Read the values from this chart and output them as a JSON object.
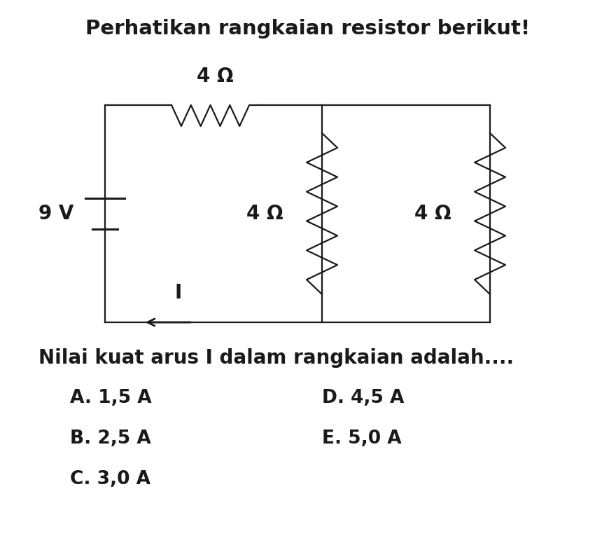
{
  "title": "Perhatikan rangkaian resistor berikut!",
  "title_fontsize": 21,
  "question": "Nilai kuat arus I dalam rangkaian adalah....",
  "question_fontsize": 20,
  "options_left": [
    "A. 1,5 A",
    "B. 2,5 A",
    "C. 3,0 A"
  ],
  "options_right": [
    "D. 4,5 A",
    "E. 5,0 A"
  ],
  "options_fontsize": 19,
  "background_color": "#ffffff",
  "circuit_color": "#1a1a1a",
  "voltage_label": "9 V",
  "r1_label": "4 Ω",
  "r2_label": "4 Ω",
  "r3_label": "4 Ω",
  "current_label": "I",
  "lw": 1.6
}
